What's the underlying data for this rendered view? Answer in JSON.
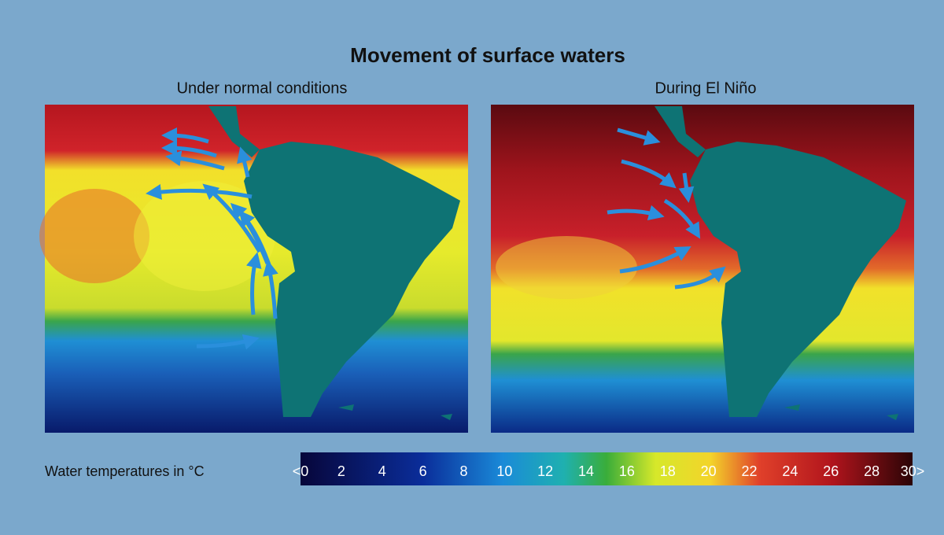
{
  "title": "Movement of surface waters",
  "panels": [
    {
      "title": "Under normal conditions"
    },
    {
      "title": "During El Niño"
    }
  ],
  "legend": {
    "label": "Water temperatures in °C",
    "ticks": [
      "<0",
      "2",
      "4",
      "6",
      "8",
      "10",
      "12",
      "14",
      "16",
      "18",
      "20",
      "22",
      "24",
      "26",
      "28",
      "30>"
    ]
  }
}
